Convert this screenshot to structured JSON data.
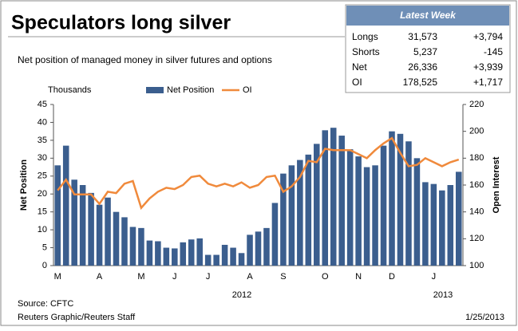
{
  "chart_data": {
    "type": "bar-line",
    "title": "Speculators long silver",
    "subtitle": "Net position of managed money in silver futures and options",
    "units": "Thousands",
    "ylabel": "Net Position",
    "y2label": "Open Interest",
    "categories": [
      "M",
      null,
      null,
      null,
      null,
      "A",
      null,
      null,
      null,
      null,
      "M",
      null,
      null,
      null,
      "J",
      null,
      null,
      null,
      "J",
      null,
      null,
      null,
      null,
      "A",
      null,
      null,
      null,
      "S",
      null,
      null,
      null,
      null,
      "O",
      null,
      null,
      null,
      "N",
      null,
      null,
      null,
      "D",
      null,
      null,
      null,
      null,
      "J",
      null,
      null,
      null
    ],
    "years": [
      "2012",
      "2013"
    ],
    "series": [
      {
        "name": "Net Position",
        "color": "#3b5e8e",
        "values": [
          28,
          33.5,
          24,
          22.5,
          20.3,
          17,
          19,
          15,
          13.5,
          10.8,
          10.5,
          7,
          6.8,
          5,
          4.8,
          6.5,
          7.3,
          7.6,
          3,
          3,
          5.8,
          5,
          3.5,
          8.6,
          9.5,
          10.5,
          17.5,
          25.7,
          28,
          29.5,
          31,
          34,
          37.8,
          38.5,
          36.3,
          32.5,
          30.5,
          27.5,
          28,
          33.5,
          37.5,
          36.8,
          34.7,
          30,
          23.3,
          22.8,
          21,
          22.5,
          26.2
        ]
      },
      {
        "name": "OI",
        "color": "#f08a3c",
        "axis": "y2",
        "values": [
          156,
          164,
          153,
          153,
          153,
          146,
          155,
          154,
          161,
          163,
          143,
          150,
          155,
          158,
          157,
          160,
          166,
          167,
          161,
          159,
          161,
          159,
          162,
          158,
          160,
          166,
          167,
          155,
          159,
          166,
          178,
          177,
          187,
          186,
          186,
          186,
          183,
          180,
          186,
          191,
          195,
          184,
          174,
          175,
          180,
          177,
          174,
          177,
          179
        ]
      }
    ],
    "ylim": [
      0,
      45
    ],
    "yticks": [
      0,
      5,
      10,
      15,
      20,
      25,
      30,
      35,
      40,
      45
    ],
    "y2lim": [
      100,
      220
    ],
    "y2ticks": [
      100,
      120,
      140,
      160,
      180,
      200,
      220
    ],
    "grid": false,
    "source": "Source: CFTC",
    "credit": "Reuters Graphic/Reuters Staff",
    "date": "1/25/2013"
  },
  "table": {
    "title": "Latest Week",
    "rows": [
      [
        "Longs",
        "31,573",
        "+3,794"
      ],
      [
        "Shorts",
        "5,237",
        "-145"
      ],
      [
        "Net",
        "26,336",
        "+3,939"
      ],
      [
        "OI",
        "178,525",
        "+1,717"
      ]
    ]
  }
}
